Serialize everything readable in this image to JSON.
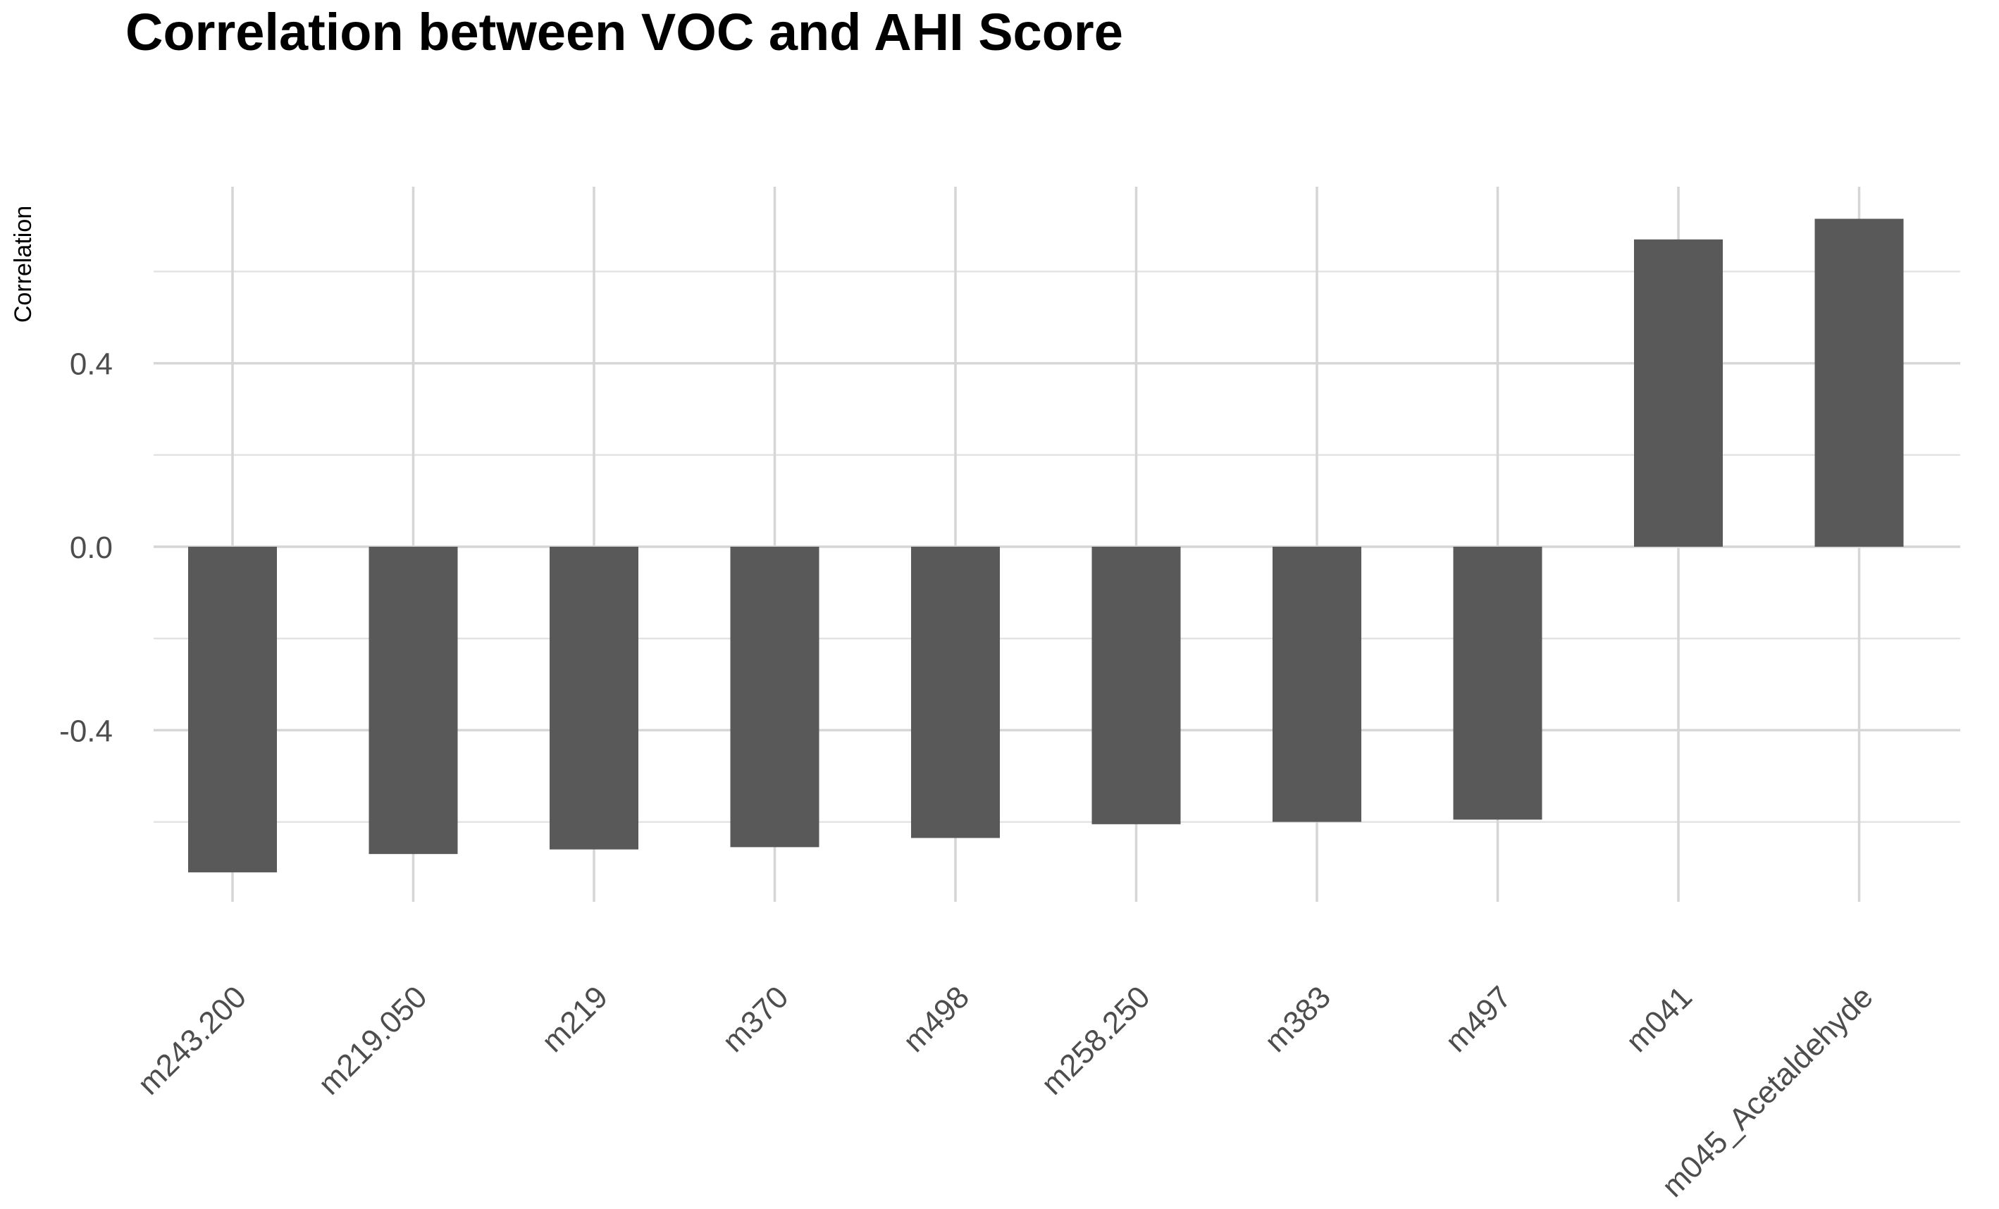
{
  "chart_data": {
    "type": "bar",
    "title": "Correlation between VOC and AHI Score",
    "xlabel": "",
    "ylabel": "Correlation",
    "categories": [
      "m243.200",
      "m219.050",
      "m219",
      "m370",
      "m498",
      "m258.250",
      "m383",
      "m497",
      "m041",
      "m045_Acetaldehyde"
    ],
    "values": [
      -0.71,
      -0.67,
      -0.66,
      -0.655,
      -0.635,
      -0.605,
      -0.6,
      -0.595,
      0.67,
      0.715
    ],
    "ylim": [
      -0.78,
      0.78
    ],
    "yticks": [
      -0.4,
      0.0,
      0.4
    ],
    "ytick_labels": [
      "-0.4",
      "0.0",
      "0.4"
    ],
    "grid": true,
    "colors": {
      "bar": "#595959",
      "grid": "#d6d6d6",
      "text": "#4d4d4d"
    }
  }
}
